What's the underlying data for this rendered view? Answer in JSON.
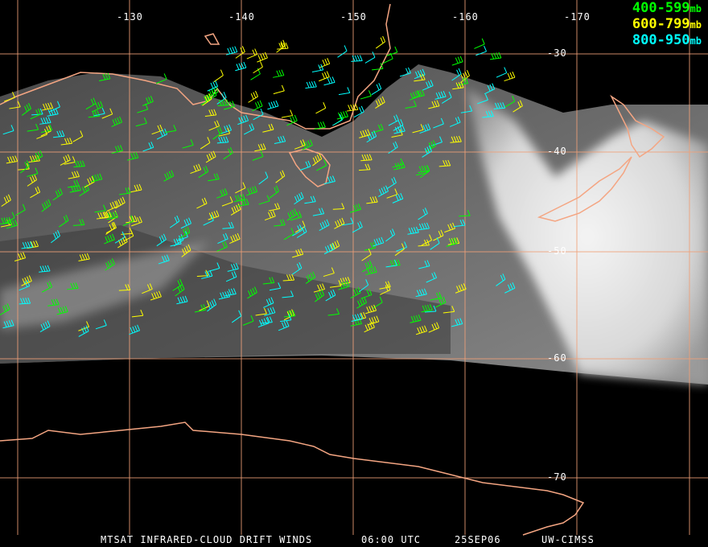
{
  "title": "MTSAT INFRARED-CLOUD DRIFT WINDS",
  "time": "06:00 UTC",
  "date": "25SEP06",
  "source": "UW-CIMSS",
  "legend": [
    {
      "range": "400-599",
      "unit": "mb",
      "color": "#00ff00"
    },
    {
      "range": "600-799",
      "unit": "mb",
      "color": "#ffff00"
    },
    {
      "range": "800-950",
      "unit": "mb",
      "color": "#00ffff"
    }
  ],
  "longitude_labels": [
    "-130",
    "-140",
    "-150",
    "-160",
    "-170"
  ],
  "latitude_labels": [
    "-30",
    "-40",
    "-50",
    "-60",
    "-70"
  ],
  "colors": {
    "grid": "#f0a078",
    "coast": "#f4a582",
    "background": "#000000"
  }
}
